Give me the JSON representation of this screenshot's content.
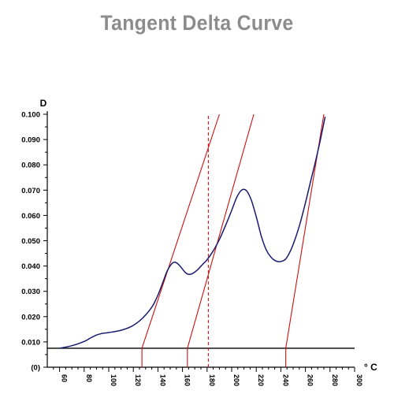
{
  "title": "Tangent Delta Curve",
  "chart_data": {
    "type": "line",
    "title": "Tangent Delta Curve",
    "ylabel": "D",
    "xlabel": "° C",
    "xlim": [
      50,
      300
    ],
    "ylim": [
      0,
      0.1
    ],
    "grid": false,
    "y_ticks": [
      "0.100",
      "0.090",
      "0.080",
      "0.070",
      "0.060",
      "0.050",
      "0.040",
      "0.030",
      "0.020",
      "0.010",
      "(0)"
    ],
    "y_tick_values": [
      0.1,
      0.09,
      0.08,
      0.07,
      0.06,
      0.05,
      0.04,
      0.03,
      0.02,
      0.01,
      0
    ],
    "x_ticks": [
      "60",
      "80",
      "100",
      "120",
      "140",
      "160",
      "180",
      "200",
      "220",
      "240",
      "260",
      "280",
      "300"
    ],
    "x_tick_values": [
      60,
      80,
      100,
      120,
      140,
      160,
      180,
      200,
      220,
      240,
      260,
      280,
      300
    ],
    "series": [
      {
        "color": "#1a1a6e",
        "x": [
          60,
          70,
          80,
          85,
          90,
          95,
          100,
          110,
          118,
          125,
          131,
          136,
          140,
          144,
          148,
          152,
          155,
          158,
          162,
          165,
          168,
          172,
          176,
          180,
          185,
          190,
          195,
          200,
          204,
          208,
          212,
          216,
          220,
          224,
          228,
          232,
          236,
          240,
          244,
          248,
          252,
          256,
          260,
          264,
          268,
          272,
          276
        ],
        "y": [
          0.0075,
          0.0085,
          0.0102,
          0.0115,
          0.0127,
          0.0134,
          0.0137,
          0.0146,
          0.016,
          0.0183,
          0.0212,
          0.0245,
          0.0285,
          0.0335,
          0.0385,
          0.0412,
          0.0413,
          0.04,
          0.0376,
          0.0367,
          0.037,
          0.0384,
          0.0405,
          0.0425,
          0.046,
          0.0505,
          0.056,
          0.062,
          0.067,
          0.07,
          0.0698,
          0.066,
          0.0595,
          0.052,
          0.0465,
          0.0435,
          0.042,
          0.0418,
          0.0428,
          0.0462,
          0.0512,
          0.0575,
          0.065,
          0.073,
          0.081,
          0.0895,
          0.099
        ]
      }
    ],
    "baseline": {
      "y": 0.0075,
      "color": "#000000"
    },
    "tangents": [
      {
        "x1": 127,
        "y1": 0.0075,
        "x2": 190,
        "y2": 0.1,
        "color": "#cc1111"
      },
      {
        "x1": 164,
        "y1": 0.0075,
        "x2": 218,
        "y2": 0.1,
        "color": "#cc1111"
      },
      {
        "x1": 244,
        "y1": 0.0075,
        "x2": 275,
        "y2": 0.1,
        "color": "#cc1111"
      }
    ],
    "verticals": [
      {
        "x": 127,
        "y_top": 0.0075,
        "dashed": false,
        "color": "#cc1111"
      },
      {
        "x": 164,
        "y_top": 0.0075,
        "dashed": false,
        "color": "#cc1111"
      },
      {
        "x": 244,
        "y_top": 0.0075,
        "dashed": false,
        "color": "#cc1111"
      },
      {
        "x": 181,
        "y_top": 0.1,
        "dashed": true,
        "color": "#cc1111"
      }
    ]
  }
}
